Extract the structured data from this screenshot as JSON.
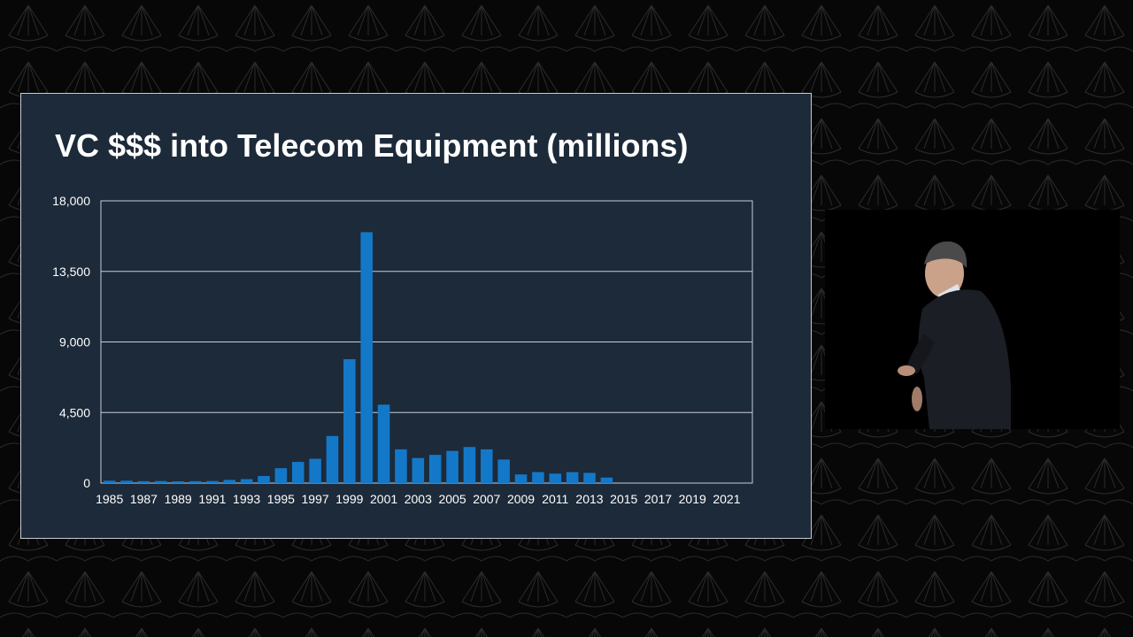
{
  "slide": {
    "title": "VC $$$ into Telecom Equipment (millions)"
  },
  "colors": {
    "slide_background": "#1c2a3a",
    "bar": "#1478c8",
    "text": "#ffffff",
    "gridline": "#c9ced6",
    "page_background": "#070707"
  },
  "icons": {
    "background": "geometric-pattern",
    "speaker": "presenter-video"
  },
  "chart_data": {
    "type": "bar",
    "title": "VC $$$ into Telecom Equipment (millions)",
    "xlabel": "",
    "ylabel": "",
    "ylim": [
      0,
      18000
    ],
    "yticks": [
      "0",
      "4,500",
      "9,000",
      "13,500",
      "18,000"
    ],
    "ytick_values": [
      0,
      4500,
      9000,
      13500,
      18000
    ],
    "grid": true,
    "legend": "none",
    "categories": [
      1985,
      1986,
      1987,
      1988,
      1989,
      1990,
      1991,
      1992,
      1993,
      1994,
      1995,
      1996,
      1997,
      1998,
      1999,
      2000,
      2001,
      2002,
      2003,
      2004,
      2005,
      2006,
      2007,
      2008,
      2009,
      2010,
      2011,
      2012,
      2013,
      2014,
      2015,
      2016,
      2017,
      2018,
      2019,
      2020,
      2021,
      2022
    ],
    "xtick_labels": [
      "1985",
      "1987",
      "1989",
      "1991",
      "1993",
      "1995",
      "1997",
      "1999",
      "2001",
      "2003",
      "2005",
      "2007",
      "2009",
      "2011",
      "2013",
      "2015",
      "2017",
      "2019",
      "2021"
    ],
    "values": [
      150,
      150,
      120,
      130,
      110,
      120,
      130,
      200,
      250,
      450,
      950,
      1350,
      1550,
      3000,
      7900,
      16000,
      5000,
      2150,
      1600,
      1800,
      2050,
      2300,
      2150,
      1500,
      550,
      700,
      600,
      700,
      650,
      350,
      0,
      0,
      0,
      0,
      0,
      0,
      0,
      0
    ]
  }
}
